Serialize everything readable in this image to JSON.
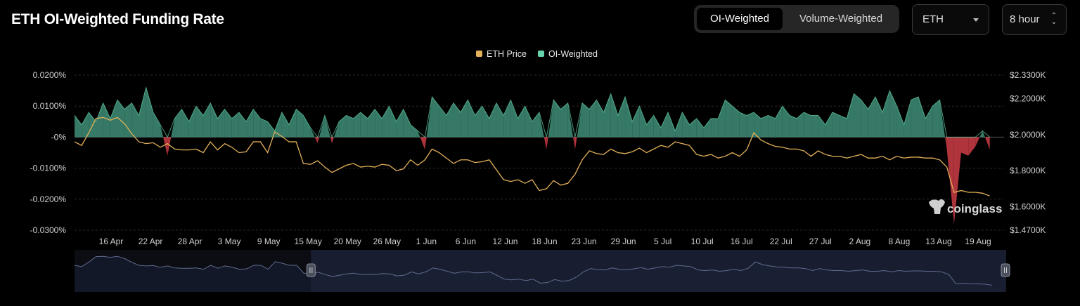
{
  "header": {
    "title": "ETH OI-Weighted Funding Rate",
    "toggle": [
      {
        "label": "OI-Weighted",
        "active": true
      },
      {
        "label": "Volume-Weighted",
        "active": false
      }
    ],
    "asset_select": {
      "value": "ETH"
    },
    "interval_select": {
      "value": "8 hour"
    }
  },
  "watermark": "coinglass",
  "colors": {
    "background": "#000000",
    "positive": "#3e8e78",
    "positive_line": "#67d3aa",
    "negative": "#b9373f",
    "price": "#e3b15a",
    "grid": "#2a2a2a",
    "navigator_fill": "#1b2236"
  },
  "chart_data": {
    "type": "area",
    "legend": [
      {
        "name": "ETH Price",
        "color": "#e3b15a"
      },
      {
        "name": "OI-Weighted",
        "color": "#67d3aa"
      }
    ],
    "legend_position": "top-center",
    "grid": true,
    "y_left": {
      "ticks": [
        "0.0200%",
        "0.0100%",
        "-0%",
        "-0.0100%",
        "-0.0200%",
        "-0.0300%"
      ],
      "tick_values": [
        0.02,
        0.01,
        0,
        -0.01,
        -0.02,
        -0.03
      ],
      "range": [
        -0.03,
        0.02
      ]
    },
    "y_right": {
      "ticks": [
        "$2.3300K",
        "$2.2000K",
        "$2.0000K",
        "$1.8000K",
        "$1.6000K",
        "$1.4700K"
      ],
      "tick_values": [
        2330,
        2200,
        2000,
        1800,
        1600,
        1470
      ],
      "range": [
        1470,
        2330
      ]
    },
    "x_ticks": [
      "16 Apr",
      "22 Apr",
      "28 Apr",
      "3 May",
      "9 May",
      "15 May",
      "20 May",
      "26 May",
      "1 Jun",
      "6 Jun",
      "12 Jun",
      "18 Jun",
      "23 Jun",
      "29 Jun",
      "5 Jul",
      "10 Jul",
      "16 Jul",
      "22 Jul",
      "27 Jul",
      "2 Aug",
      "8 Aug",
      "13 Aug",
      "19 Aug"
    ],
    "x_range_days": [
      0,
      130
    ],
    "series": [
      {
        "name": "OI-Weighted",
        "unit": "%",
        "points": [
          [
            0,
            0.007
          ],
          [
            1,
            0.004
          ],
          [
            2,
            0.008
          ],
          [
            3,
            0.005
          ],
          [
            4,
            0.011
          ],
          [
            5,
            0.006
          ],
          [
            6,
            0.012
          ],
          [
            7,
            0.009
          ],
          [
            8,
            0.011
          ],
          [
            9,
            0.007
          ],
          [
            10,
            0.016
          ],
          [
            11,
            0.008
          ],
          [
            12,
            0.004
          ],
          [
            13,
            -0.006
          ],
          [
            14,
            0.006
          ],
          [
            15,
            0.009
          ],
          [
            16,
            0.005
          ],
          [
            17,
            0.01
          ],
          [
            18,
            0.007
          ],
          [
            19,
            0.011
          ],
          [
            20,
            0.006
          ],
          [
            21,
            0.009
          ],
          [
            22,
            0.006
          ],
          [
            23,
            0.008
          ],
          [
            24,
            0.005
          ],
          [
            25,
            0.009
          ],
          [
            26,
            0.006
          ],
          [
            27,
            0.005
          ],
          [
            28,
            0.002
          ],
          [
            29,
            0.008
          ],
          [
            30,
            0.004
          ],
          [
            31,
            0.009
          ],
          [
            32,
            0.007
          ],
          [
            33,
            0.003
          ],
          [
            34,
            -0.002
          ],
          [
            35,
            0.007
          ],
          [
            36,
            -0.002
          ],
          [
            37,
            0.005
          ],
          [
            38,
            0.007
          ],
          [
            39,
            0.006
          ],
          [
            40,
            0.008
          ],
          [
            41,
            0.006
          ],
          [
            42,
            0.009
          ],
          [
            43,
            0.006
          ],
          [
            44,
            0.01
          ],
          [
            45,
            0.005
          ],
          [
            46,
            0.009
          ],
          [
            47,
            0.004
          ],
          [
            48,
            0.002
          ],
          [
            49,
            -0.004
          ],
          [
            50,
            0.013
          ],
          [
            51,
            0.01
          ],
          [
            52,
            0.007
          ],
          [
            53,
            0.011
          ],
          [
            54,
            0.008
          ],
          [
            55,
            0.012
          ],
          [
            56,
            0.007
          ],
          [
            57,
            0.01
          ],
          [
            58,
            0.006
          ],
          [
            59,
            0.011
          ],
          [
            60,
            0.007
          ],
          [
            61,
            0.012
          ],
          [
            62,
            0.006
          ],
          [
            63,
            0.01
          ],
          [
            64,
            0.005
          ],
          [
            65,
            0.008
          ],
          [
            66,
            -0.004
          ],
          [
            67,
            0.012
          ],
          [
            68,
            0.009
          ],
          [
            69,
            0.011
          ],
          [
            70,
            -0.004
          ],
          [
            71,
            0.011
          ],
          [
            72,
            0.009
          ],
          [
            73,
            0.012
          ],
          [
            74,
            0.008
          ],
          [
            75,
            0.014
          ],
          [
            76,
            0.007
          ],
          [
            77,
            0.013
          ],
          [
            78,
            0.005
          ],
          [
            79,
            0.01
          ],
          [
            80,
            0.004
          ],
          [
            81,
            0.007
          ],
          [
            82,
            0.003
          ],
          [
            83,
            0.008
          ],
          [
            84,
            0.002
          ],
          [
            85,
            0.008
          ],
          [
            86,
            0.004
          ],
          [
            87,
            0.006
          ],
          [
            88,
            0.003
          ],
          [
            89,
            0.006
          ],
          [
            90,
            0.006
          ],
          [
            91,
            0.012
          ],
          [
            92,
            0.01
          ],
          [
            93,
            0.008
          ],
          [
            94,
            0.007
          ],
          [
            95,
            0.008
          ],
          [
            96,
            0.006
          ],
          [
            97,
            0.007
          ],
          [
            98,
            0.006
          ],
          [
            99,
            0.01
          ],
          [
            100,
            0.007
          ],
          [
            101,
            0.006
          ],
          [
            102,
            0.008
          ],
          [
            103,
            0.007
          ],
          [
            104,
            0.007
          ],
          [
            105,
            0.004
          ],
          [
            106,
            0.008
          ],
          [
            107,
            0.007
          ],
          [
            108,
            0.006
          ],
          [
            109,
            0.014
          ],
          [
            110,
            0.012
          ],
          [
            111,
            0.009
          ],
          [
            112,
            0.013
          ],
          [
            113,
            0.008
          ],
          [
            114,
            0.015
          ],
          [
            115,
            0.01
          ],
          [
            116,
            0.004
          ],
          [
            117,
            0.012
          ],
          [
            118,
            0.013
          ],
          [
            119,
            0.006
          ],
          [
            120,
            0.01
          ],
          [
            121,
            0.012
          ],
          [
            122,
            -0.004
          ],
          [
            123,
            -0.028
          ],
          [
            124,
            -0.005
          ],
          [
            125,
            -0.006
          ],
          [
            126,
            -0.003
          ],
          [
            127,
            0.002
          ],
          [
            128,
            -0.004
          ]
        ]
      },
      {
        "name": "ETH Price",
        "unit": "USD",
        "points": [
          [
            0,
            1960
          ],
          [
            1,
            1940
          ],
          [
            2,
            2010
          ],
          [
            3,
            2090
          ],
          [
            4,
            2095
          ],
          [
            5,
            2080
          ],
          [
            6,
            2095
          ],
          [
            7,
            2060
          ],
          [
            8,
            2005
          ],
          [
            9,
            1960
          ],
          [
            10,
            1950
          ],
          [
            11,
            1955
          ],
          [
            12,
            1930
          ],
          [
            13,
            1950
          ],
          [
            14,
            1920
          ],
          [
            15,
            1915
          ],
          [
            16,
            1915
          ],
          [
            17,
            1920
          ],
          [
            18,
            1900
          ],
          [
            19,
            1960
          ],
          [
            20,
            1915
          ],
          [
            21,
            1950
          ],
          [
            22,
            1930
          ],
          [
            23,
            1900
          ],
          [
            24,
            1905
          ],
          [
            25,
            1960
          ],
          [
            26,
            1960
          ],
          [
            27,
            1900
          ],
          [
            28,
            2015
          ],
          [
            29,
            1990
          ],
          [
            30,
            1960
          ],
          [
            31,
            1960
          ],
          [
            32,
            1840
          ],
          [
            33,
            1835
          ],
          [
            34,
            1855
          ],
          [
            35,
            1820
          ],
          [
            36,
            1790
          ],
          [
            37,
            1810
          ],
          [
            38,
            1830
          ],
          [
            39,
            1840
          ],
          [
            40,
            1820
          ],
          [
            41,
            1825
          ],
          [
            42,
            1820
          ],
          [
            43,
            1835
          ],
          [
            44,
            1830
          ],
          [
            45,
            1800
          ],
          [
            46,
            1810
          ],
          [
            47,
            1860
          ],
          [
            48,
            1830
          ],
          [
            49,
            1860
          ],
          [
            50,
            1920
          ],
          [
            51,
            1900
          ],
          [
            52,
            1870
          ],
          [
            53,
            1840
          ],
          [
            54,
            1860
          ],
          [
            55,
            1860
          ],
          [
            56,
            1845
          ],
          [
            57,
            1850
          ],
          [
            58,
            1860
          ],
          [
            59,
            1805
          ],
          [
            60,
            1750
          ],
          [
            61,
            1740
          ],
          [
            62,
            1750
          ],
          [
            63,
            1730
          ],
          [
            64,
            1750
          ],
          [
            65,
            1690
          ],
          [
            66,
            1700
          ],
          [
            67,
            1745
          ],
          [
            68,
            1720
          ],
          [
            69,
            1730
          ],
          [
            70,
            1780
          ],
          [
            71,
            1860
          ],
          [
            72,
            1910
          ],
          [
            73,
            1895
          ],
          [
            74,
            1890
          ],
          [
            75,
            1920
          ],
          [
            76,
            1900
          ],
          [
            77,
            1895
          ],
          [
            78,
            1905
          ],
          [
            79,
            1925
          ],
          [
            80,
            1900
          ],
          [
            81,
            1920
          ],
          [
            82,
            1940
          ],
          [
            83,
            1930
          ],
          [
            84,
            1960
          ],
          [
            85,
            1950
          ],
          [
            86,
            1940
          ],
          [
            87,
            1890
          ],
          [
            88,
            1880
          ],
          [
            89,
            1890
          ],
          [
            90,
            1870
          ],
          [
            91,
            1880
          ],
          [
            92,
            1900
          ],
          [
            93,
            1880
          ],
          [
            94,
            1915
          ],
          [
            95,
            2010
          ],
          [
            96,
            1970
          ],
          [
            97,
            1950
          ],
          [
            98,
            1935
          ],
          [
            99,
            1930
          ],
          [
            100,
            1920
          ],
          [
            101,
            1920
          ],
          [
            102,
            1910
          ],
          [
            103,
            1880
          ],
          [
            104,
            1910
          ],
          [
            105,
            1890
          ],
          [
            106,
            1880
          ],
          [
            107,
            1880
          ],
          [
            108,
            1870
          ],
          [
            109,
            1880
          ],
          [
            110,
            1890
          ],
          [
            111,
            1870
          ],
          [
            112,
            1870
          ],
          [
            113,
            1880
          ],
          [
            114,
            1860
          ],
          [
            115,
            1880
          ],
          [
            116,
            1870
          ],
          [
            117,
            1875
          ],
          [
            118,
            1875
          ],
          [
            119,
            1870
          ],
          [
            120,
            1870
          ],
          [
            121,
            1860
          ],
          [
            122,
            1820
          ],
          [
            123,
            1680
          ],
          [
            124,
            1690
          ],
          [
            125,
            1680
          ],
          [
            126,
            1680
          ],
          [
            127,
            1675
          ],
          [
            128,
            1660
          ]
        ]
      }
    ],
    "navigator": {
      "selected_range_days": [
        33,
        130
      ]
    }
  }
}
